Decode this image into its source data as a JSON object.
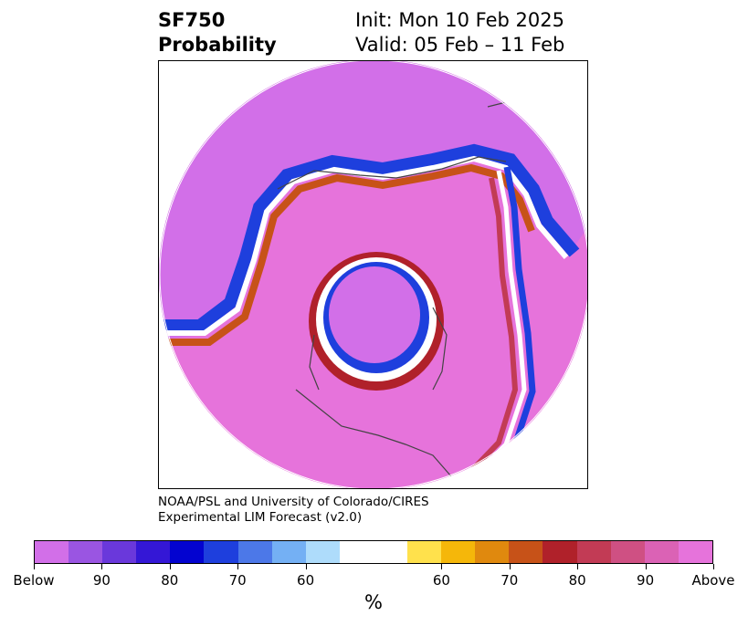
{
  "header": {
    "variable": "SF750",
    "variable_desc": "Probability",
    "init": "Init: Mon 10 Feb 2025",
    "valid": "Valid: 05 Feb – 11 Feb"
  },
  "credit": {
    "line1": "NOAA/PSL and University of Colorado/CIRES",
    "line2": "Experimental LIM Forecast (v2.0)"
  },
  "colorbar": {
    "colors": [
      "#d26fe8",
      "#9a55e2",
      "#6a38db",
      "#3417d6",
      "#0303d0",
      "#1e3fdd",
      "#4c78e8",
      "#74b0f4",
      "#aedcfb",
      "#ffffff",
      "#ffffff",
      "#ffe14c",
      "#f5b70a",
      "#e0890e",
      "#c75218",
      "#b0212a",
      "#c23b55",
      "#cf5083",
      "#db62b5",
      "#e673db"
    ],
    "tick_labels": [
      "Below",
      "90",
      "80",
      "70",
      "60",
      "60",
      "70",
      "80",
      "90",
      "Above"
    ],
    "unit": "%"
  },
  "map": {
    "projection": "north-polar-stereographic",
    "field": "SF750 probability",
    "legend_hint": "below-normal (purple/blue) over Arctic/Canada, above-normal (pink/magenta) elsewhere"
  }
}
